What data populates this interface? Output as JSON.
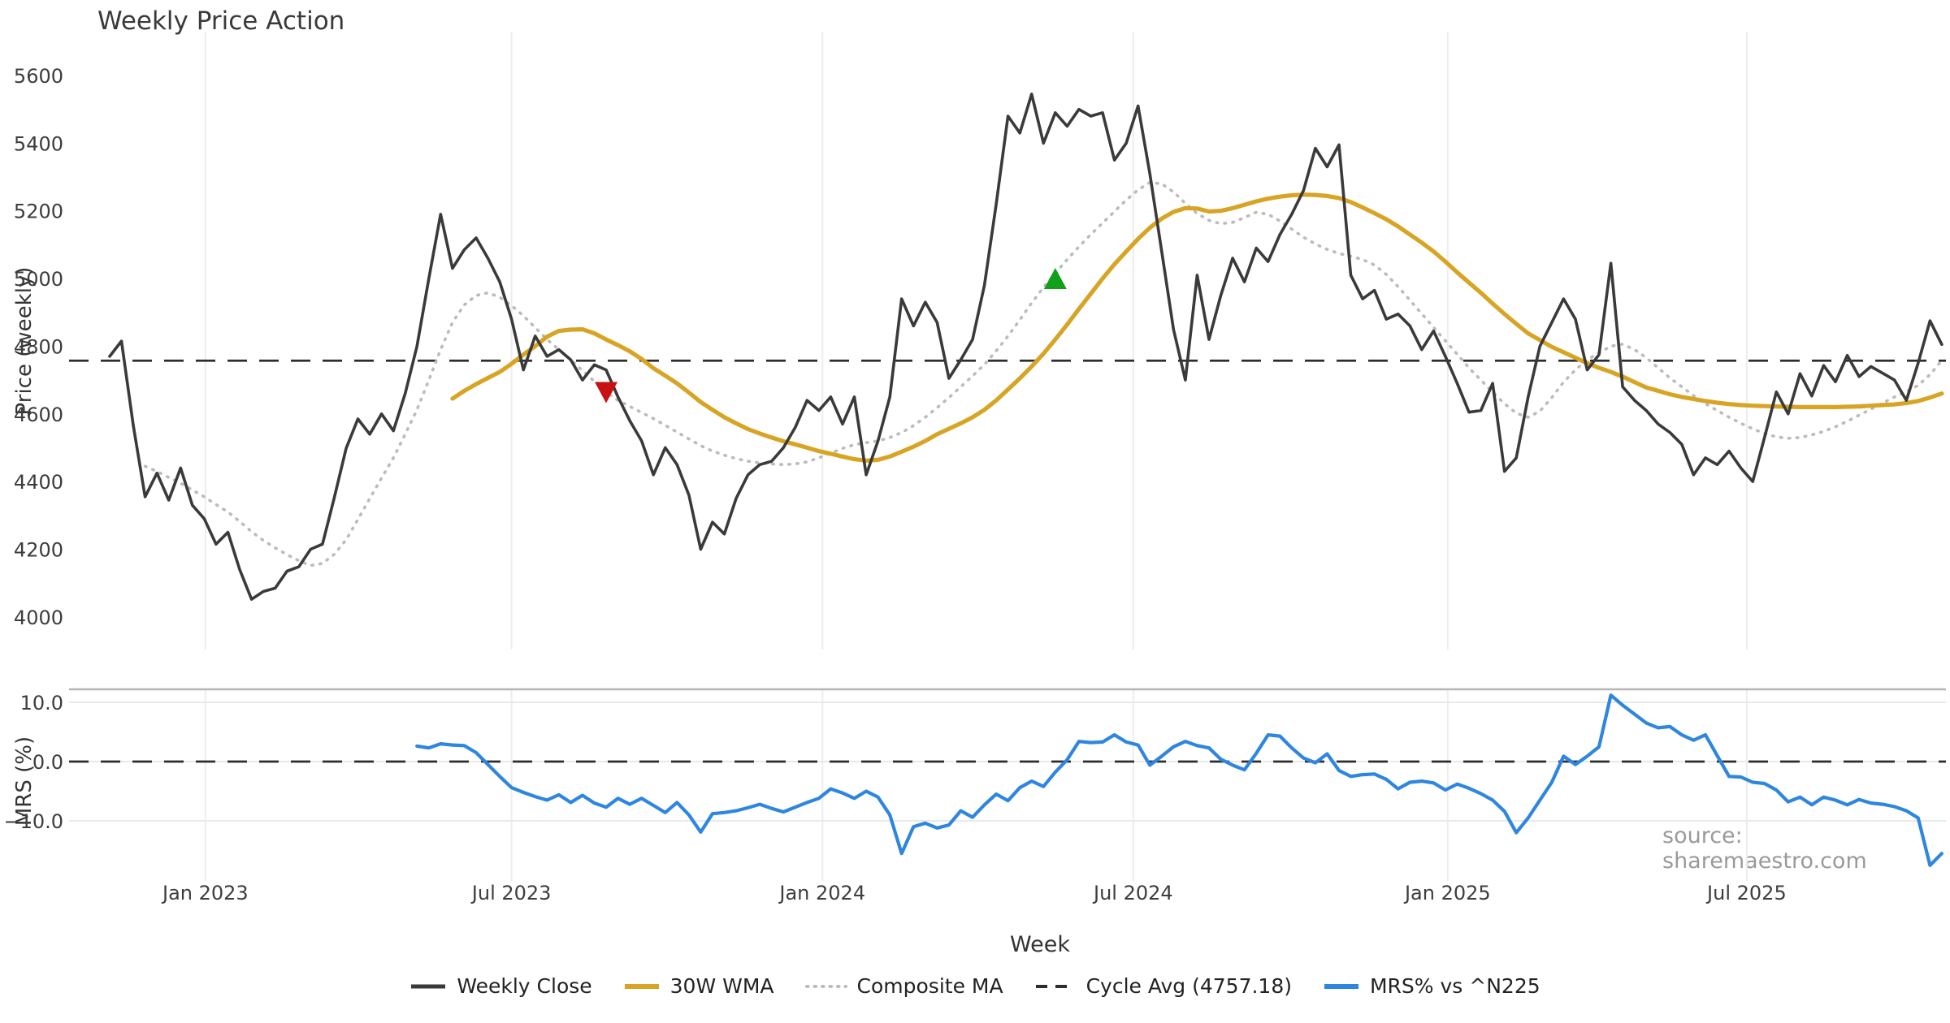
{
  "title": "Weekly Price Action",
  "source_note": "source: sharemaestro.com",
  "colors": {
    "weekly_close": "#3a3a3a",
    "wma30": "#d7a424",
    "composite_ma": "#bcbcbc",
    "cycle_avg": "#2d2d2d",
    "mrs": "#2e86e0",
    "sell_marker": "#c81111",
    "buy_marker": "#11a019",
    "grid": "#ededed",
    "spine": "#b5b5b5"
  },
  "legend": {
    "items": [
      {
        "label": "Weekly Close",
        "color": "#3a3a3a",
        "style": "solid"
      },
      {
        "label": "30W WMA",
        "color": "#d7a424",
        "style": "solid"
      },
      {
        "label": "Composite MA",
        "color": "#bcbcbc",
        "style": "dotted"
      },
      {
        "label": "Cycle Avg (4757.18)",
        "color": "#2d2d2d",
        "style": "dashed"
      },
      {
        "label": "MRS% vs ^N225",
        "color": "#2e86e0",
        "style": "solid"
      }
    ]
  },
  "x_axis": {
    "label": "Week",
    "tick_labels": [
      "Jan 2023",
      "Jul 2023",
      "Jan 2024",
      "Jul 2024",
      "Jan 2025",
      "Jul 2025"
    ],
    "tick_weeks": [
      8.1,
      34.0,
      60.3,
      86.6,
      113.2,
      138.5
    ]
  },
  "chart_data": [
    {
      "type": "line",
      "panel": "price",
      "title": "Weekly Price Action",
      "xlabel": "Week",
      "ylabel": "Price (weekly)",
      "ylim": [
        3900,
        5730
      ],
      "yticks": [
        4000,
        4200,
        4400,
        4600,
        4800,
        5000,
        5200,
        5400,
        5600
      ],
      "grid": "vertical-only",
      "cycle_avg": 4757.18,
      "series": [
        {
          "name": "Weekly Close",
          "style": "solid",
          "color": "#3a3a3a",
          "start_week": 0,
          "values": [
            4770,
            4815,
            4565,
            4355,
            4425,
            4345,
            4440,
            4330,
            4290,
            4215,
            4250,
            4140,
            4052,
            4075,
            4085,
            4135,
            4148,
            4200,
            4215,
            4352,
            4498,
            4585,
            4540,
            4600,
            4550,
            4660,
            4800,
            5000,
            5190,
            5030,
            5085,
            5120,
            5060,
            4990,
            4880,
            4730,
            4830,
            4770,
            4790,
            4760,
            4700,
            4745,
            4730,
            4650,
            4580,
            4520,
            4420,
            4500,
            4450,
            4360,
            4200,
            4280,
            4245,
            4350,
            4420,
            4450,
            4460,
            4500,
            4560,
            4640,
            4610,
            4650,
            4570,
            4650,
            4420,
            4520,
            4650,
            4940,
            4860,
            4930,
            4870,
            4705,
            4760,
            4820,
            4980,
            5220,
            5480,
            5430,
            5545,
            5400,
            5490,
            5450,
            5500,
            5480,
            5490,
            5350,
            5400,
            5510,
            5310,
            5080,
            4850,
            4700,
            5010,
            4820,
            4950,
            5060,
            4990,
            5090,
            5050,
            5130,
            5190,
            5260,
            5385,
            5330,
            5395,
            5010,
            4940,
            4965,
            4880,
            4895,
            4860,
            4790,
            4845,
            4770,
            4690,
            4605,
            4610,
            4690,
            4430,
            4470,
            4650,
            4800,
            4870,
            4940,
            4880,
            4730,
            4775,
            5045,
            4680,
            4640,
            4610,
            4570,
            4545,
            4510,
            4420,
            4470,
            4450,
            4490,
            4440,
            4400,
            4530,
            4665,
            4600,
            4719,
            4653,
            4743,
            4695,
            4773,
            4710,
            4740,
            4720,
            4700,
            4640,
            4750,
            4875,
            4805
          ]
        },
        {
          "name": "30W WMA",
          "style": "solid",
          "color": "#d7a424",
          "start_week": 29,
          "values": [
            4645,
            4668,
            4688,
            4706,
            4724,
            4748,
            4775,
            4800,
            4828,
            4845,
            4849,
            4850,
            4838,
            4820,
            4803,
            4785,
            4762,
            4735,
            4713,
            4690,
            4663,
            4635,
            4612,
            4590,
            4572,
            4555,
            4542,
            4530,
            4519,
            4510,
            4500,
            4490,
            4482,
            4474,
            4466,
            4462,
            4464,
            4474,
            4488,
            4503,
            4520,
            4540,
            4556,
            4572,
            4590,
            4612,
            4640,
            4672,
            4705,
            4740,
            4778,
            4820,
            4864,
            4910,
            4955,
            5000,
            5042,
            5080,
            5117,
            5150,
            5177,
            5197,
            5208,
            5207,
            5198,
            5200,
            5208,
            5218,
            5228,
            5236,
            5242,
            5246,
            5248,
            5247,
            5244,
            5238,
            5226,
            5210,
            5193,
            5175,
            5154,
            5130,
            5106,
            5080,
            5050,
            5018,
            4988,
            4958,
            4926,
            4895,
            4866,
            4838,
            4818,
            4798,
            4782,
            4766,
            4750,
            4736,
            4724,
            4710,
            4694,
            4678,
            4668,
            4658,
            4650,
            4644,
            4638,
            4633,
            4629,
            4626,
            4624,
            4623,
            4622,
            4621,
            4620,
            4620,
            4620,
            4620,
            4621,
            4622,
            4624,
            4626,
            4628,
            4632,
            4638,
            4648,
            4660
          ]
        },
        {
          "name": "Composite MA",
          "style": "dotted",
          "color": "#bcbcbc",
          "start_week": 3,
          "values": [
            4445,
            4430,
            4412,
            4395,
            4375,
            4355,
            4332,
            4310,
            4282,
            4252,
            4226,
            4204,
            4184,
            4166,
            4152,
            4158,
            4185,
            4228,
            4288,
            4350,
            4410,
            4470,
            4540,
            4612,
            4700,
            4790,
            4870,
            4922,
            4950,
            4958,
            4945,
            4920,
            4890,
            4855,
            4820,
            4790,
            4760,
            4728,
            4696,
            4664,
            4640,
            4622,
            4604,
            4586,
            4566,
            4546,
            4526,
            4506,
            4490,
            4478,
            4468,
            4460,
            4455,
            4452,
            4450,
            4452,
            4458,
            4470,
            4484,
            4498,
            4509,
            4515,
            4520,
            4530,
            4545,
            4565,
            4590,
            4618,
            4648,
            4680,
            4712,
            4746,
            4786,
            4830,
            4878,
            4928,
            4974,
            5016,
            5056,
            5094,
            5130,
            5164,
            5198,
            5232,
            5262,
            5284,
            5280,
            5256,
            5222,
            5192,
            5172,
            5162,
            5166,
            5180,
            5196,
            5190,
            5170,
            5146,
            5122,
            5102,
            5086,
            5074,
            5066,
            5056,
            5040,
            5012,
            4976,
            4936,
            4896,
            4856,
            4816,
            4776,
            4736,
            4700,
            4664,
            4630,
            4602,
            4590,
            4608,
            4648,
            4694,
            4730,
            4760,
            4780,
            4800,
            4806,
            4790,
            4766,
            4736,
            4706,
            4680,
            4654,
            4630,
            4610,
            4590,
            4572,
            4556,
            4542,
            4532,
            4528,
            4530,
            4538,
            4548,
            4562,
            4578,
            4596,
            4614,
            4632,
            4650,
            4666,
            4684,
            4716,
            4758
          ]
        },
        {
          "name": "Cycle Avg",
          "style": "dashed",
          "color": "#2d2d2d",
          "value": 4757.18
        }
      ],
      "markers": [
        {
          "name": "sell-signal",
          "shape": "triangle-down",
          "color": "#c81111",
          "week": 42,
          "price": 4663
        },
        {
          "name": "buy-signal",
          "shape": "triangle-up",
          "color": "#11a019",
          "week": 80,
          "price": 5000
        }
      ]
    },
    {
      "type": "line",
      "panel": "mrs",
      "ylabel": "MRS (%)",
      "ylim": [
        -20,
        12.3
      ],
      "ytick_labels": [
        "10.0",
        "0.0",
        "−10.0"
      ],
      "ytick_values": [
        10,
        0,
        -10
      ],
      "zero_line": 0.0,
      "series": [
        {
          "name": "MRS% vs ^N225",
          "style": "solid",
          "color": "#2e86e0",
          "start_week": 26,
          "values": [
            2.6,
            2.3,
            3.0,
            2.8,
            2.7,
            1.5,
            -0.5,
            -2.5,
            -4.4,
            -5.2,
            -5.9,
            -6.5,
            -5.6,
            -6.9,
            -5.7,
            -7.0,
            -7.7,
            -6.2,
            -7.2,
            -6.2,
            -7.4,
            -8.6,
            -6.9,
            -9.0,
            -11.9,
            -8.8,
            -8.6,
            -8.3,
            -7.8,
            -7.2,
            -7.9,
            -8.5,
            -7.7,
            -6.9,
            -6.2,
            -4.6,
            -5.3,
            -6.2,
            -5.0,
            -6.0,
            -9.0,
            -15.5,
            -11.0,
            -10.4,
            -11.2,
            -10.7,
            -8.3,
            -9.4,
            -7.3,
            -5.5,
            -6.6,
            -4.4,
            -3.3,
            -4.2,
            -1.8,
            0.3,
            3.4,
            3.2,
            3.3,
            4.5,
            3.3,
            2.8,
            -0.6,
            0.9,
            2.5,
            3.4,
            2.7,
            2.3,
            0.4,
            -0.6,
            -1.4,
            1.4,
            4.5,
            4.3,
            2.3,
            0.6,
            -0.2,
            1.3,
            -1.5,
            -2.5,
            -2.2,
            -2.1,
            -3.0,
            -4.6,
            -3.5,
            -3.3,
            -3.6,
            -4.8,
            -3.8,
            -4.5,
            -5.4,
            -6.5,
            -8.4,
            -12.0,
            -9.5,
            -6.5,
            -3.5,
            0.9,
            -0.5,
            0.9,
            2.5,
            11.2,
            9.5,
            8.0,
            6.5,
            5.7,
            5.9,
            4.5,
            3.6,
            4.5,
            1.0,
            -2.5,
            -2.6,
            -3.5,
            -3.7,
            -4.8,
            -6.8,
            -6.0,
            -7.3,
            -6.0,
            -6.5,
            -7.3,
            -6.4,
            -7.0,
            -7.2,
            -7.6,
            -8.3,
            -9.5,
            -17.5,
            -15.5
          ]
        }
      ]
    }
  ]
}
